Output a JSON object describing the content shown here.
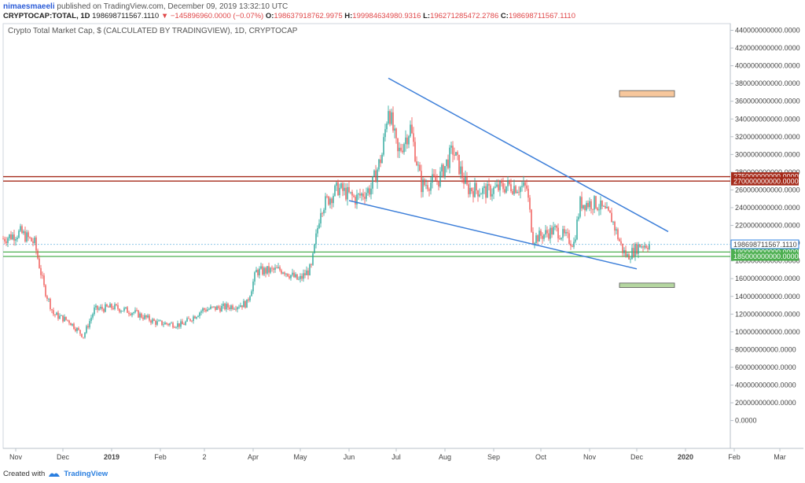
{
  "header": {
    "author": "nimaesmaeeli",
    "published_text": "published on TradingView.com, December 09, 2019 13:32:10 UTC",
    "symbol": "CRYPTOCAP:TOTAL, 1D",
    "last": "198698711567.1110",
    "change": "▼ −145896960.0000 (−0.07%)",
    "open_label": "O:",
    "open": "198637918762.9975",
    "high_label": "H:",
    "high": "199984634980.9316",
    "low_label": "L:",
    "low": "196271285472.2786",
    "close_label": "C:",
    "close": "198698711567.1110"
  },
  "footer": {
    "created_with": "Created with",
    "brand": "TradingView"
  },
  "colors": {
    "up": "#26a69a",
    "down": "#ef5350",
    "trendline": "#3d7fd9",
    "resistance": "#a52a1a",
    "support": "#4caf50",
    "price_line": "#90c8e8"
  },
  "chart_data": {
    "type": "candlestick",
    "title": "Crypto Total Market Cap, $ (CALCULATED BY TRADINGVIEW), 1D, CRYPTOCAP",
    "ylim": [
      0,
      450000000000
    ],
    "y_ticks": [
      "440000000000.0000",
      "420000000000.0000",
      "400000000000.0000",
      "380000000000.0000",
      "360000000000.0000",
      "340000000000.0000",
      "320000000000.0000",
      "300000000000.0000",
      "280000000000.0000",
      "260000000000.0000",
      "240000000000.0000",
      "220000000000.0000",
      "200000000000.0000",
      "180000000000.0000",
      "160000000000.0000",
      "140000000000.0000",
      "120000000000.0000",
      "100000000000.0000",
      "80000000000.0000",
      "60000000000.0000",
      "40000000000.0000",
      "20000000000.0000",
      "0.0000"
    ],
    "x_ticks": [
      {
        "label": "Nov",
        "bold": false
      },
      {
        "label": "Dec",
        "bold": false
      },
      {
        "label": "2019",
        "bold": true
      },
      {
        "label": "Feb",
        "bold": false
      },
      {
        "label": "2",
        "bold": false
      },
      {
        "label": "Apr",
        "bold": false
      },
      {
        "label": "May",
        "bold": false
      },
      {
        "label": "Jun",
        "bold": false
      },
      {
        "label": "Jul",
        "bold": false
      },
      {
        "label": "Aug",
        "bold": false
      },
      {
        "label": "Sep",
        "bold": false
      },
      {
        "label": "Oct",
        "bold": false
      },
      {
        "label": "Nov",
        "bold": false
      },
      {
        "label": "Dec",
        "bold": false
      },
      {
        "label": "2020",
        "bold": true
      },
      {
        "label": "Feb",
        "bold": false
      },
      {
        "label": "Mar",
        "bold": false
      }
    ],
    "close_path": [
      [
        "2018-10-24",
        205000000000
      ],
      [
        "2018-11-04",
        212000000000
      ],
      [
        "2018-11-13",
        200000000000
      ],
      [
        "2018-11-19",
        150000000000
      ],
      [
        "2018-11-25",
        120000000000
      ],
      [
        "2018-12-05",
        112000000000
      ],
      [
        "2018-12-14",
        95000000000
      ],
      [
        "2018-12-21",
        125000000000
      ],
      [
        "2019-01-02",
        128000000000
      ],
      [
        "2019-01-15",
        122000000000
      ],
      [
        "2019-01-30",
        110000000000
      ],
      [
        "2019-02-15",
        108000000000
      ],
      [
        "2019-02-28",
        125000000000
      ],
      [
        "2019-03-15",
        128000000000
      ],
      [
        "2019-03-28",
        132000000000
      ],
      [
        "2019-04-03",
        168000000000
      ],
      [
        "2019-04-20",
        170000000000
      ],
      [
        "2019-04-30",
        158000000000
      ],
      [
        "2019-05-08",
        172000000000
      ],
      [
        "2019-05-14",
        240000000000
      ],
      [
        "2019-05-25",
        262000000000
      ],
      [
        "2019-06-05",
        250000000000
      ],
      [
        "2019-06-15",
        262000000000
      ],
      [
        "2019-06-22",
        300000000000
      ],
      [
        "2019-06-26",
        355000000000
      ],
      [
        "2019-07-02",
        300000000000
      ],
      [
        "2019-07-10",
        330000000000
      ],
      [
        "2019-07-17",
        265000000000
      ],
      [
        "2019-07-28",
        272000000000
      ],
      [
        "2019-08-06",
        305000000000
      ],
      [
        "2019-08-15",
        262000000000
      ],
      [
        "2019-08-28",
        258000000000
      ],
      [
        "2019-09-10",
        265000000000
      ],
      [
        "2019-09-22",
        262000000000
      ],
      [
        "2019-09-26",
        205000000000
      ],
      [
        "2019-10-10",
        215000000000
      ],
      [
        "2019-10-22",
        200000000000
      ],
      [
        "2019-10-26",
        245000000000
      ],
      [
        "2019-11-05",
        245000000000
      ],
      [
        "2019-11-15",
        228000000000
      ],
      [
        "2019-11-22",
        192000000000
      ],
      [
        "2019-11-25",
        185000000000
      ],
      [
        "2019-12-03",
        198000000000
      ],
      [
        "2019-12-09",
        198698711567
      ]
    ],
    "trendlines": [
      {
        "from": [
          "2019-06-26",
          386000000000
        ],
        "to": [
          "2019-12-21",
          213000000000
        ]
      },
      {
        "from": [
          "2019-06-01",
          248000000000
        ],
        "to": [
          "2019-12-01",
          171000000000
        ]
      }
    ],
    "zones": [
      {
        "from": "2019-11-20",
        "to": "2019-12-25",
        "top": 372000000000,
        "bottom": 365000000000,
        "color": "#f7c79c"
      },
      {
        "from": "2019-11-20",
        "to": "2019-12-25",
        "top": 155000000000,
        "bottom": 150000000000,
        "color": "#b5d6a0"
      }
    ],
    "levels": [
      {
        "value": 275000000000,
        "label": "275000000000.0000",
        "color": "#a52a1a"
      },
      {
        "value": 270000000000,
        "label": "270000000000.0000",
        "color": "#a52a1a"
      },
      {
        "value": 190000000000,
        "label": "190000000000.0000",
        "color": "#4caf50"
      },
      {
        "value": 185000000000,
        "label": "185000000000.0000",
        "color": "#4caf50"
      }
    ],
    "last_price": {
      "value": 198698711567.111,
      "label": "198698711567.1110"
    }
  }
}
